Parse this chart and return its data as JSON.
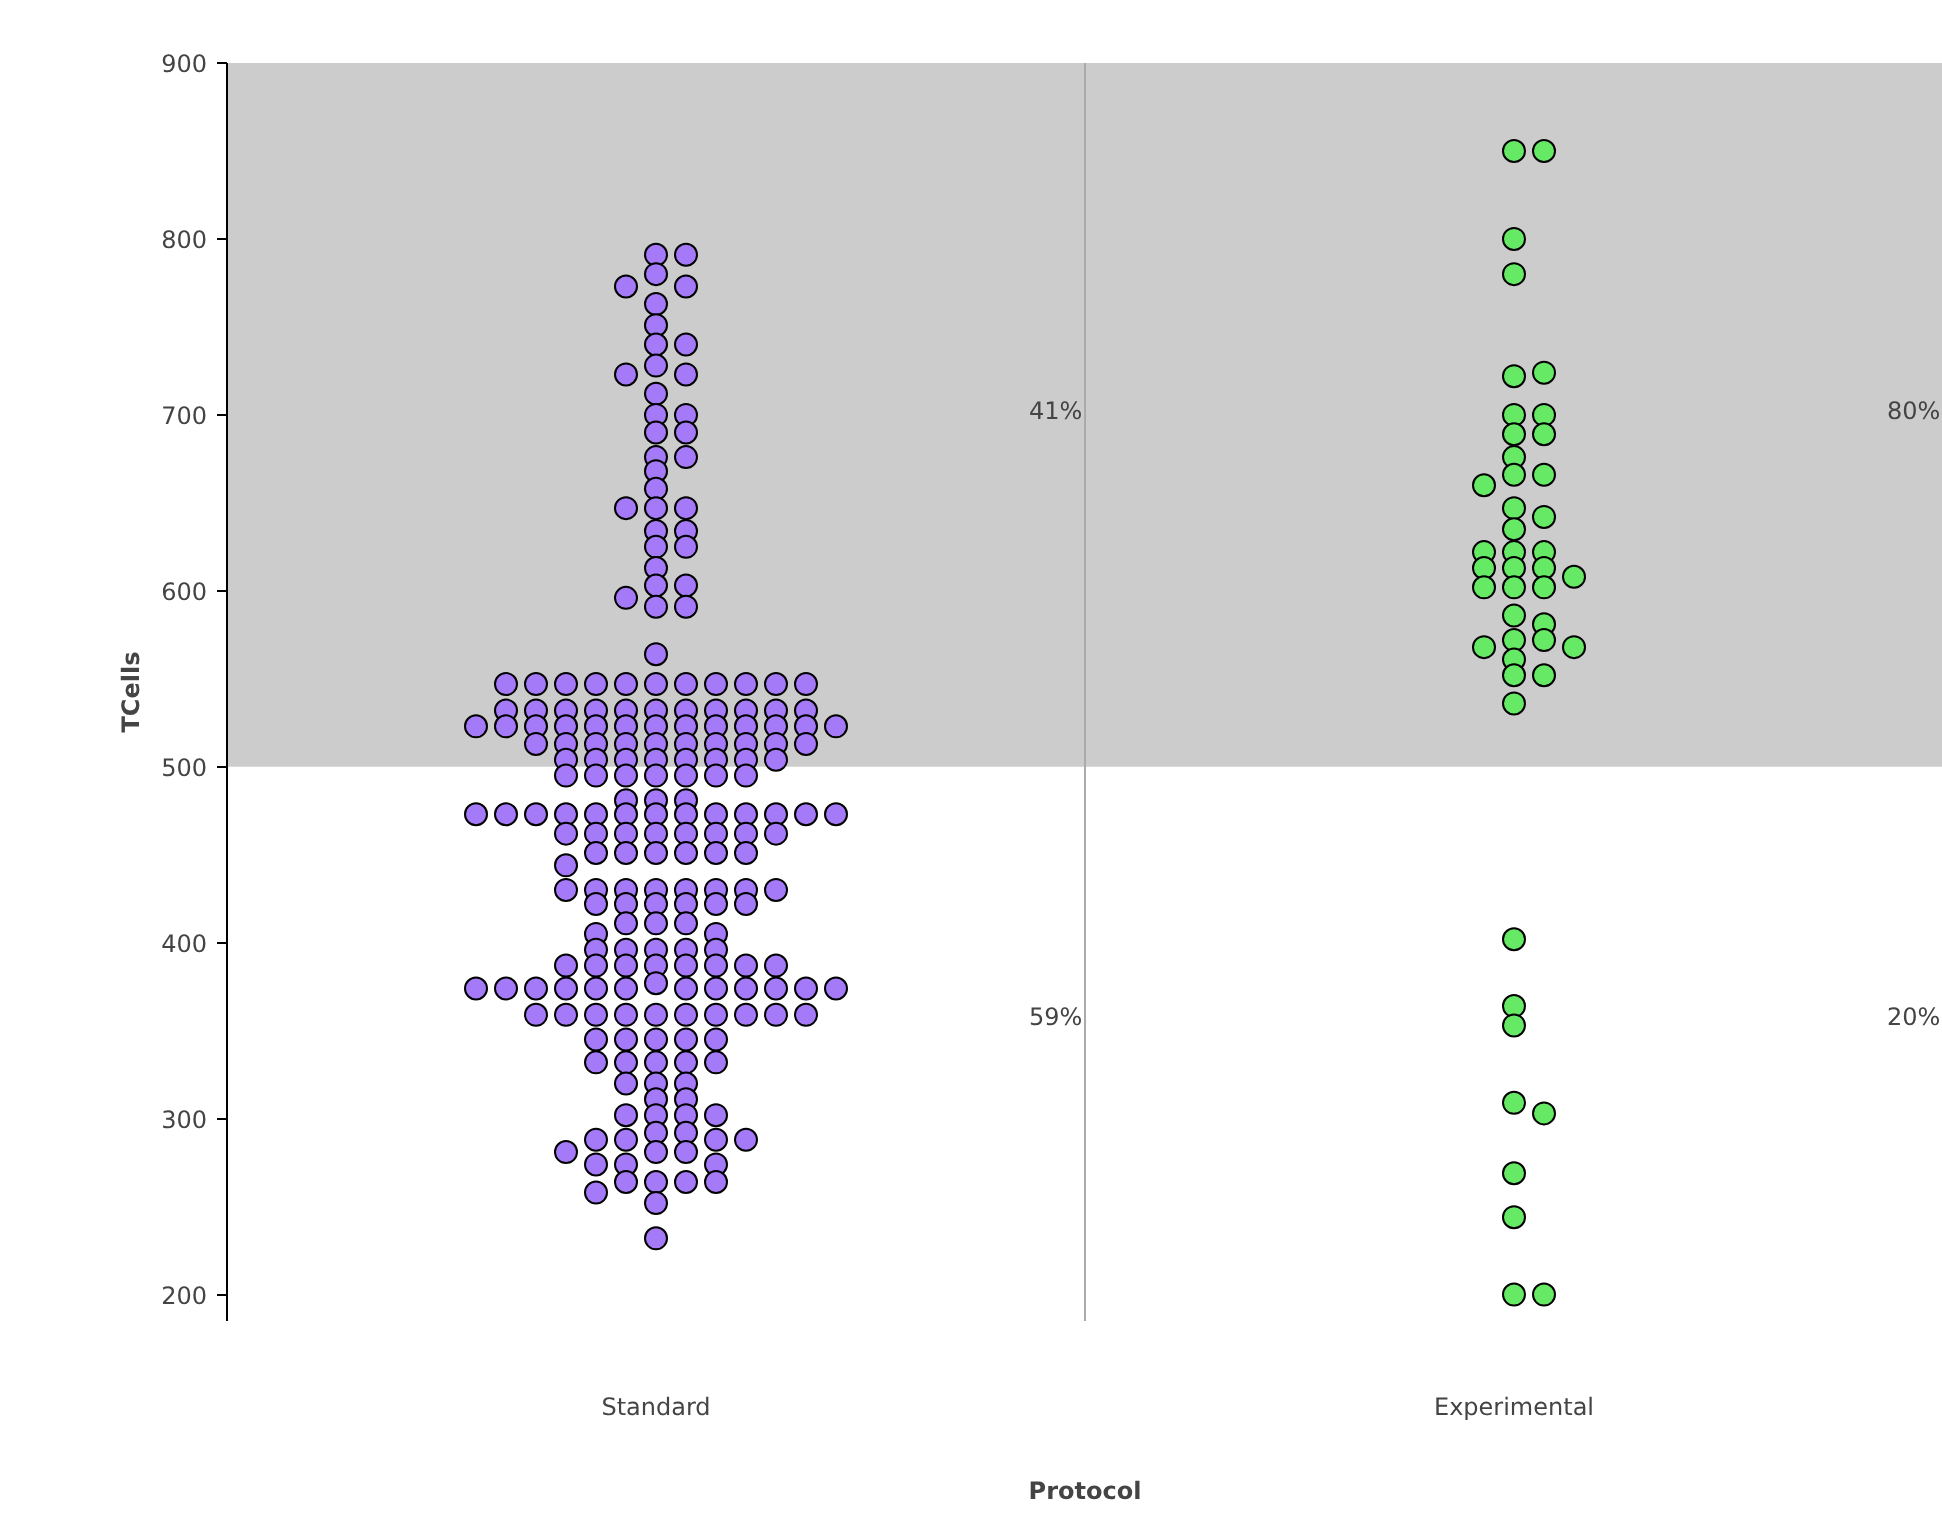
{
  "chart_data": {
    "type": "scatter",
    "xlabel": "Protocol",
    "ylabel": "TCells",
    "categories": [
      "Standard",
      "Experimental"
    ],
    "ylim": [
      185,
      900
    ],
    "yticks": [
      200,
      300,
      400,
      500,
      600,
      700,
      800,
      900
    ],
    "marker": "circle",
    "bands": [
      {
        "axis": "y",
        "from": 500,
        "to": 900,
        "color": "#cccccc"
      }
    ],
    "annotations": [
      "41%",
      "59%",
      "80%",
      "20%"
    ],
    "series": [
      {
        "color": "#a47af8",
        "x": [
          "Standard",
          "Standard",
          "Standard",
          "Standard",
          "Standard",
          "Standard",
          "Standard",
          "Standard",
          "Standard",
          "Standard",
          "Standard",
          "Standard",
          "Standard",
          "Standard",
          "Standard",
          "Standard",
          "Standard",
          "Standard",
          "Standard",
          "Standard",
          "Standard",
          "Standard",
          "Standard",
          "Standard",
          "Standard",
          "Standard",
          "Standard",
          "Standard",
          "Standard",
          "Standard",
          "Standard",
          "Standard",
          "Standard",
          "Standard",
          "Standard",
          "Standard",
          "Standard",
          "Standard",
          "Standard",
          "Standard",
          "Standard",
          "Standard",
          "Standard",
          "Standard",
          "Standard",
          "Standard",
          "Standard",
          "Standard",
          "Standard",
          "Standard",
          "Standard",
          "Standard",
          "Standard",
          "Standard",
          "Standard",
          "Standard",
          "Standard",
          "Standard",
          "Standard",
          "Standard",
          "Standard",
          "Standard",
          "Standard",
          "Standard",
          "Standard",
          "Standard",
          "Standard",
          "Standard",
          "Standard",
          "Standard",
          "Standard",
          "Standard",
          "Standard",
          "Standard",
          "Standard",
          "Standard",
          "Standard",
          "Standard",
          "Standard",
          "Standard",
          "Standard",
          "Standard",
          "Standard",
          "Standard",
          "Standard",
          "Standard",
          "Standard",
          "Standard",
          "Standard",
          "Standard",
          "Standard",
          "Standard",
          "Standard",
          "Standard",
          "Standard",
          "Standard",
          "Standard",
          "Standard",
          "Standard",
          "Standard",
          "Standard",
          "Standard",
          "Standard",
          "Standard",
          "Standard",
          "Standard",
          "Standard",
          "Standard",
          "Standard",
          "Standard",
          "Standard",
          "Standard",
          "Standard",
          "Standard",
          "Standard",
          "Standard",
          "Standard",
          "Standard",
          "Standard",
          "Standard",
          "Standard",
          "Standard",
          "Standard",
          "Standard",
          "Standard",
          "Standard",
          "Standard",
          "Standard",
          "Standard",
          "Standard",
          "Standard",
          "Standard",
          "Standard",
          "Standard",
          "Standard",
          "Standard",
          "Standard",
          "Standard",
          "Standard",
          "Standard",
          "Standard",
          "Standard",
          "Standard",
          "Standard",
          "Standard",
          "Standard",
          "Standard",
          "Standard",
          "Standard",
          "Standard",
          "Standard",
          "Standard",
          "Standard",
          "Standard",
          "Standard",
          "Standard",
          "Standard",
          "Standard",
          "Standard",
          "Standard",
          "Standard",
          "Standard",
          "Standard",
          "Standard",
          "Standard",
          "Standard",
          "Standard",
          "Standard",
          "Standard",
          "Standard",
          "Standard",
          "Standard",
          "Standard",
          "Standard",
          "Standard",
          "Standard",
          "Standard",
          "Standard",
          "Standard",
          "Standard",
          "Standard",
          "Standard",
          "Standard",
          "Standard",
          "Standard",
          "Standard",
          "Standard",
          "Standard",
          "Standard",
          "Standard",
          "Standard",
          "Standard",
          "Standard",
          "Standard",
          "Standard",
          "Standard",
          "Standard",
          "Standard",
          "Standard",
          "Standard",
          "Standard",
          "Standard",
          "Standard",
          "Standard",
          "Standard",
          "Standard",
          "Standard",
          "Standard",
          "Standard",
          "Standard",
          "Standard",
          "Standard",
          "Standard",
          "Standard",
          "Standard",
          "Standard",
          "Standard",
          "Standard",
          "Standard"
        ],
        "values": [
          791,
          791,
          780,
          773,
          773,
          763,
          751,
          740,
          740,
          728,
          723,
          723,
          712,
          700,
          700,
          690,
          690,
          676,
          676,
          668,
          658,
          647,
          647,
          647,
          634,
          634,
          625,
          625,
          613,
          603,
          603,
          596,
          591,
          591,
          564,
          547,
          547,
          547,
          547,
          547,
          547,
          547,
          547,
          547,
          547,
          547,
          532,
          532,
          532,
          532,
          532,
          532,
          532,
          532,
          532,
          532,
          532,
          523,
          523,
          523,
          523,
          523,
          523,
          523,
          523,
          523,
          523,
          523,
          523,
          523,
          513,
          513,
          513,
          513,
          513,
          513,
          513,
          513,
          513,
          513,
          504,
          504,
          504,
          504,
          504,
          504,
          504,
          504,
          495,
          495,
          495,
          495,
          495,
          495,
          495,
          481,
          481,
          481,
          473,
          473,
          473,
          473,
          473,
          473,
          473,
          473,
          473,
          473,
          473,
          473,
          473,
          462,
          462,
          462,
          462,
          462,
          462,
          462,
          462,
          451,
          451,
          451,
          451,
          451,
          451,
          444,
          430,
          430,
          430,
          430,
          430,
          430,
          430,
          430,
          422,
          422,
          422,
          422,
          422,
          422,
          411,
          411,
          411,
          405,
          405,
          396,
          396,
          396,
          396,
          396,
          387,
          387,
          387,
          387,
          387,
          387,
          387,
          387,
          377,
          374,
          374,
          374,
          374,
          374,
          374,
          374,
          374,
          374,
          374,
          374,
          374,
          359,
          359,
          359,
          359,
          359,
          359,
          359,
          359,
          359,
          359,
          345,
          345,
          345,
          345,
          345,
          332,
          332,
          332,
          332,
          332,
          320,
          320,
          320,
          311,
          311,
          302,
          302,
          302,
          302,
          292,
          292,
          288,
          288,
          288,
          288,
          281,
          281,
          281,
          274,
          274,
          274,
          264,
          264,
          264,
          264,
          258,
          252,
          232
        ]
      },
      {
        "color": "#66ea66",
        "x": [
          "Experimental",
          "Experimental",
          "Experimental",
          "Experimental",
          "Experimental",
          "Experimental",
          "Experimental",
          "Experimental",
          "Experimental",
          "Experimental",
          "Experimental",
          "Experimental",
          "Experimental",
          "Experimental",
          "Experimental",
          "Experimental",
          "Experimental",
          "Experimental",
          "Experimental",
          "Experimental",
          "Experimental",
          "Experimental",
          "Experimental",
          "Experimental",
          "Experimental",
          "Experimental",
          "Experimental",
          "Experimental",
          "Experimental",
          "Experimental",
          "Experimental",
          "Experimental",
          "Experimental",
          "Experimental",
          "Experimental",
          "Experimental",
          "Experimental",
          "Experimental",
          "Experimental",
          "Experimental",
          "Experimental",
          "Experimental",
          "Experimental",
          "Experimental",
          "Experimental",
          "Experimental"
        ],
        "values": [
          850,
          850,
          800,
          780,
          722,
          724,
          700,
          700,
          689,
          689,
          676,
          666,
          666,
          660,
          647,
          642,
          635,
          622,
          622,
          622,
          613,
          613,
          613,
          608,
          602,
          602,
          602,
          586,
          581,
          572,
          572,
          568,
          568,
          561,
          552,
          552,
          536,
          402,
          364,
          353,
          309,
          303,
          269,
          244,
          200,
          200
        ]
      }
    ]
  }
}
